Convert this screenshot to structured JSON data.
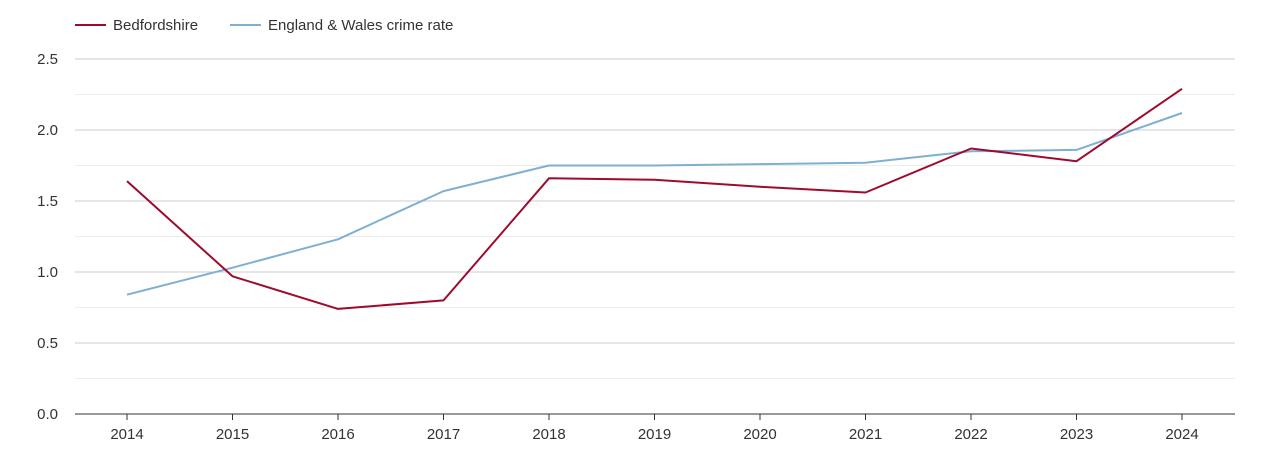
{
  "chart_data": {
    "type": "line",
    "title": "",
    "xlabel": "",
    "ylabel": "",
    "categories": [
      "2014",
      "2015",
      "2016",
      "2017",
      "2018",
      "2019",
      "2020",
      "2021",
      "2022",
      "2023",
      "2024"
    ],
    "ylim": [
      0,
      2.5
    ],
    "yticks": [
      "0.0",
      "0.5",
      "1.0",
      "1.5",
      "2.0",
      "2.5"
    ],
    "grid": true,
    "legend_position": "top-left",
    "series": [
      {
        "name": "Bedfordshire",
        "color": "#9e0b2d",
        "values": [
          1.64,
          0.97,
          0.74,
          0.8,
          1.66,
          1.65,
          1.6,
          1.56,
          1.87,
          1.78,
          2.29
        ]
      },
      {
        "name": "England & Wales crime rate",
        "color": "#7eb0d2",
        "values": [
          0.84,
          1.03,
          1.23,
          1.57,
          1.75,
          1.75,
          1.76,
          1.77,
          1.85,
          1.86,
          2.12
        ]
      }
    ]
  }
}
